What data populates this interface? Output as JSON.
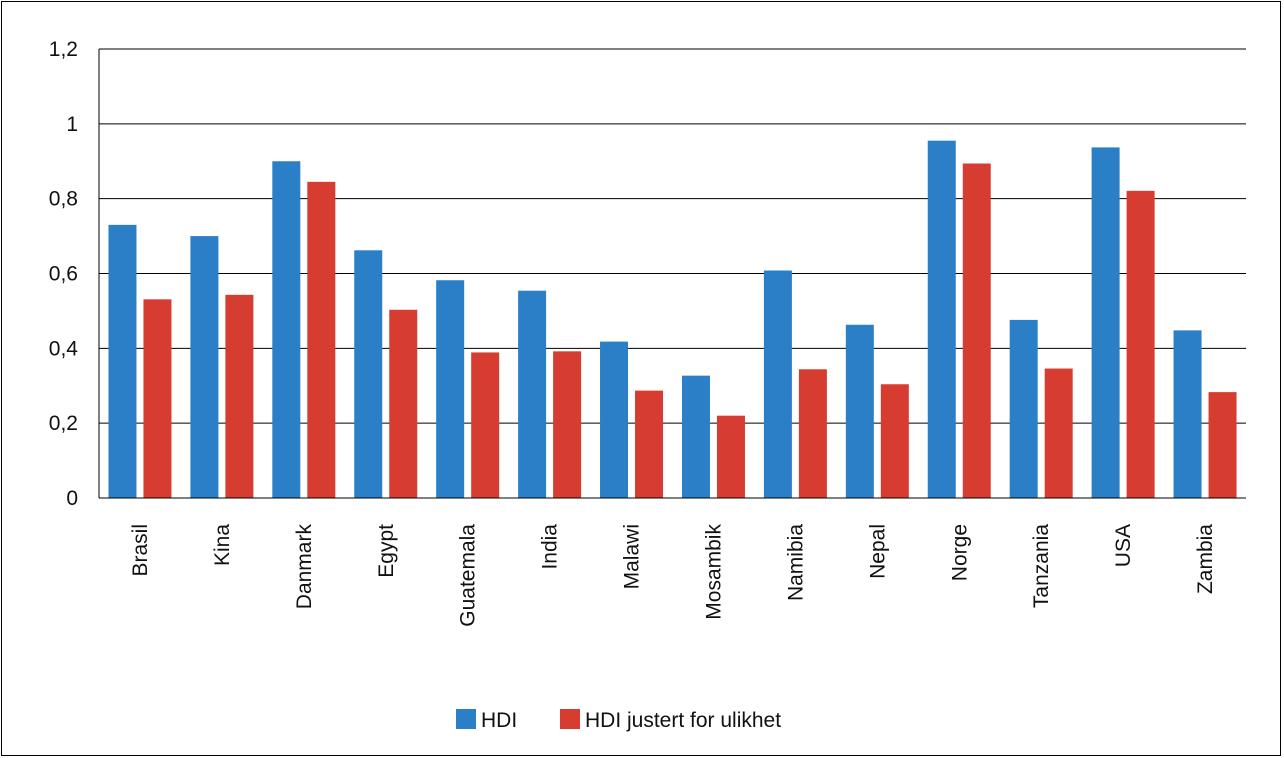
{
  "chart_data": {
    "type": "bar",
    "categories": [
      "Brasil",
      "Kina",
      "Danmark",
      "Egypt",
      "Guatemala",
      "India",
      "Malawi",
      "Mosambik",
      "Namibia",
      "Nepal",
      "Norge",
      "Tanzania",
      "USA",
      "Zambia"
    ],
    "series": [
      {
        "name": "HDI",
        "color": "#2a7fc6",
        "values": [
          0.73,
          0.7,
          0.9,
          0.662,
          0.582,
          0.554,
          0.418,
          0.327,
          0.608,
          0.463,
          0.955,
          0.476,
          0.937,
          0.448
        ]
      },
      {
        "name": "HDI justert for ulikhet",
        "color": "#d63c30",
        "values": [
          0.531,
          0.543,
          0.845,
          0.503,
          0.389,
          0.392,
          0.287,
          0.22,
          0.344,
          0.304,
          0.894,
          0.346,
          0.821,
          0.283
        ]
      }
    ],
    "yticks": [
      "0",
      "0,2",
      "0,4",
      "0,6",
      "0,8",
      "1",
      "1,2"
    ],
    "ylim": [
      0,
      1.2
    ],
    "grid": true,
    "legend_position": "bottom"
  }
}
